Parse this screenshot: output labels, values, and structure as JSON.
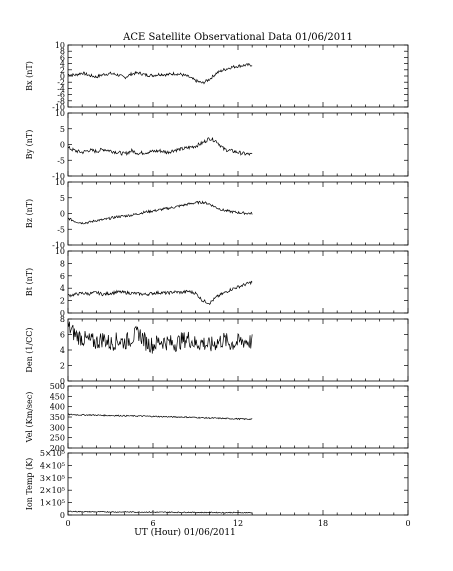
{
  "title": "ACE Satellite Observational Data   01/06/2011",
  "xlabel": "UT (Hour)   01/06/2011",
  "chart_data": [
    {
      "type": "line",
      "ylabel": "Bx (nT)",
      "ylim": [
        -10,
        10
      ],
      "yticks": [
        "-10",
        "-8",
        "-6",
        "-4",
        "-2",
        "0",
        "2",
        "4",
        "6",
        "8",
        "10"
      ],
      "x_range_hours": [
        0,
        24
      ],
      "xticks": [
        "0",
        "6",
        "12",
        "18",
        "0"
      ],
      "series": [
        {
          "x": [
            0,
            0.5,
            1,
            1.5,
            2,
            2.5,
            3,
            3.5,
            4,
            4.5,
            5,
            5.5,
            6,
            6.5,
            7,
            7.5,
            8,
            8.5,
            9,
            9.5,
            10,
            10.5,
            11,
            11.5,
            12,
            12.5,
            13
          ],
          "y": [
            0.5,
            0.3,
            1.0,
            0.2,
            -0.3,
            0.5,
            0.8,
            0.4,
            -0.5,
            0.7,
            1.0,
            0.3,
            0.2,
            0.6,
            0.4,
            0.8,
            0.5,
            -0.2,
            -1.5,
            -2.3,
            -1.0,
            1.0,
            2.0,
            2.8,
            3.2,
            3.5,
            3.6
          ]
        }
      ]
    },
    {
      "type": "line",
      "ylabel": "By (nT)",
      "ylim": [
        -10,
        10
      ],
      "yticks": [
        "-10",
        "-5",
        "0",
        "5",
        "10"
      ],
      "x_range_hours": [
        0,
        24
      ],
      "xticks": [
        "0",
        "6",
        "12",
        "18",
        "0"
      ],
      "series": [
        {
          "x": [
            0,
            0.5,
            1,
            1.5,
            2,
            2.5,
            3,
            3.5,
            4,
            4.5,
            5,
            5.5,
            6,
            6.5,
            7,
            7.5,
            8,
            8.5,
            9,
            9.5,
            10,
            10.5,
            11,
            11.5,
            12,
            12.5,
            13
          ],
          "y": [
            -1.0,
            -2.0,
            -2.5,
            -1.8,
            -2.2,
            -1.5,
            -2.0,
            -2.5,
            -3.0,
            -2.0,
            -2.8,
            -2.5,
            -2.2,
            -2.0,
            -2.5,
            -1.8,
            -1.5,
            -1.0,
            -0.5,
            0.5,
            2.0,
            1.0,
            -1.5,
            -2.0,
            -2.5,
            -3.0,
            -3.2
          ]
        }
      ]
    },
    {
      "type": "line",
      "ylabel": "Bz (nT)",
      "ylim": [
        -10,
        10
      ],
      "yticks": [
        "-10",
        "-5",
        "0",
        "5",
        "10"
      ],
      "x_range_hours": [
        0,
        24
      ],
      "xticks": [
        "0",
        "6",
        "12",
        "18",
        "0"
      ],
      "series": [
        {
          "x": [
            0,
            0.5,
            1,
            1.5,
            2,
            2.5,
            3,
            3.5,
            4,
            4.5,
            5,
            5.5,
            6,
            6.5,
            7,
            7.5,
            8,
            8.5,
            9,
            9.5,
            10,
            10.5,
            11,
            11.5,
            12,
            12.5,
            13
          ],
          "y": [
            -1.5,
            -2.5,
            -3.0,
            -2.8,
            -2.2,
            -2.0,
            -1.5,
            -1.0,
            -0.8,
            -0.5,
            0.0,
            0.5,
            0.8,
            1.2,
            1.6,
            2.0,
            2.5,
            3.0,
            3.4,
            3.6,
            3.0,
            1.8,
            1.0,
            0.6,
            0.3,
            0.1,
            0.0
          ]
        }
      ]
    },
    {
      "type": "line",
      "ylabel": "Bt (nT)",
      "ylim": [
        0,
        10
      ],
      "yticks": [
        "0",
        "2",
        "4",
        "6",
        "8",
        "10"
      ],
      "x_range_hours": [
        0,
        24
      ],
      "xticks": [
        "0",
        "6",
        "12",
        "18",
        "0"
      ],
      "series": [
        {
          "x": [
            0,
            0.5,
            1,
            1.5,
            2,
            2.5,
            3,
            3.5,
            4,
            4.5,
            5,
            5.5,
            6,
            6.5,
            7,
            7.5,
            8,
            8.5,
            9,
            9.5,
            10,
            10.5,
            11,
            11.5,
            12,
            12.5,
            13
          ],
          "y": [
            2.8,
            3.0,
            3.2,
            3.1,
            3.3,
            3.0,
            3.2,
            3.4,
            3.3,
            3.2,
            3.1,
            3.0,
            3.2,
            3.3,
            3.2,
            3.4,
            3.3,
            3.5,
            3.2,
            2.0,
            1.6,
            2.6,
            3.2,
            3.8,
            4.2,
            4.6,
            5.0
          ]
        }
      ]
    },
    {
      "type": "line",
      "ylabel": "Den (1/CC)",
      "ylim": [
        0,
        8
      ],
      "yticks": [
        "0",
        "2",
        "4",
        "6",
        "8"
      ],
      "x_range_hours": [
        0,
        24
      ],
      "xticks": [
        "0",
        "6",
        "12",
        "18",
        "0"
      ],
      "series": [
        {
          "x": [
            0,
            0.5,
            1,
            1.5,
            2,
            2.5,
            3,
            3.5,
            4,
            4.5,
            5,
            5.5,
            6,
            6.5,
            7,
            7.5,
            8,
            8.5,
            9,
            9.5,
            10,
            10.5,
            11,
            11.5,
            12,
            12.5,
            13
          ],
          "y": [
            7.0,
            6.0,
            5.5,
            5.2,
            5.0,
            5.5,
            4.8,
            5.3,
            5.0,
            5.6,
            6.2,
            5.0,
            4.6,
            5.2,
            5.0,
            4.8,
            5.2,
            5.5,
            4.8,
            5.0,
            4.5,
            5.0,
            5.3,
            4.8,
            5.0,
            5.2,
            5.0
          ]
        }
      ]
    },
    {
      "type": "line",
      "ylabel": "Vel (Km/sec)",
      "ylim": [
        200,
        500
      ],
      "yticks": [
        "200",
        "250",
        "300",
        "350",
        "400",
        "450",
        "500"
      ],
      "x_range_hours": [
        0,
        24
      ],
      "xticks": [
        "0",
        "6",
        "12",
        "18",
        "0"
      ],
      "series": [
        {
          "x": [
            0,
            0.5,
            1,
            1.5,
            2,
            2.5,
            3,
            3.5,
            4,
            4.5,
            5,
            5.5,
            6,
            6.5,
            7,
            7.5,
            8,
            8.5,
            9,
            9.5,
            10,
            10.5,
            11,
            11.5,
            12,
            12.5,
            13
          ],
          "y": [
            362,
            361,
            360,
            360,
            359,
            358,
            357,
            357,
            356,
            355,
            355,
            354,
            353,
            352,
            351,
            350,
            350,
            349,
            348,
            346,
            345,
            344,
            343,
            342,
            341,
            340,
            340
          ]
        }
      ]
    },
    {
      "type": "line",
      "ylabel": "Ion Temp (K)",
      "ylim": [
        0,
        500000
      ],
      "yticks": [
        "0",
        "1×10⁵",
        "2×10⁵",
        "3×10⁵",
        "4×10⁵",
        "5×10⁵"
      ],
      "x_range_hours": [
        0,
        24
      ],
      "xticks": [
        "0",
        "6",
        "12",
        "18",
        "0"
      ],
      "series": [
        {
          "x": [
            0,
            0.5,
            1,
            1.5,
            2,
            2.5,
            3,
            3.5,
            4,
            4.5,
            5,
            5.5,
            6,
            6.5,
            7,
            7.5,
            8,
            8.5,
            9,
            9.5,
            10,
            10.5,
            11,
            11.5,
            12,
            12.5,
            13
          ],
          "y": [
            30000,
            28000,
            27000,
            26000,
            25000,
            26000,
            25000,
            24000,
            25000,
            24000,
            23000,
            24000,
            23000,
            22000,
            23000,
            22000,
            21000,
            22000,
            21000,
            20000,
            21000,
            20000,
            19000,
            20000,
            19000,
            19000,
            18000
          ]
        }
      ]
    }
  ]
}
